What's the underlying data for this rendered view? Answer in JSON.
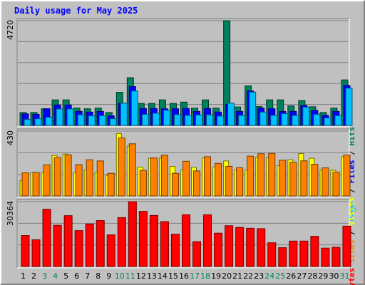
{
  "title": "Daily usage for May 2025",
  "chart_data": {
    "type": "bar",
    "title": "Daily usage for May 2025",
    "categories": [
      "1",
      "2",
      "3",
      "4",
      "5",
      "6",
      "7",
      "8",
      "9",
      "10",
      "11",
      "12",
      "13",
      "14",
      "15",
      "16",
      "17",
      "18",
      "19",
      "20",
      "21",
      "22",
      "23",
      "24",
      "25",
      "26",
      "27",
      "28",
      "29",
      "30",
      "31"
    ],
    "weekend_days": [
      "3",
      "4",
      "10",
      "11",
      "17",
      "18",
      "24",
      "25",
      "31"
    ],
    "panels": [
      {
        "name": "hits-panel",
        "ymax": 4720,
        "ymax_label": "4720",
        "labels": [
          "Hits",
          "Files",
          "Pages"
        ],
        "series": [
          {
            "name": "Hits",
            "color": "#00805c",
            "values": [
              580,
              580,
              750,
              1150,
              1150,
              780,
              750,
              780,
              580,
              1490,
              2150,
              990,
              990,
              1150,
              990,
              1050,
              780,
              1150,
              780,
              4720,
              830,
              1780,
              850,
              1150,
              1150,
              880,
              1120,
              840,
              580,
              780,
              2050
            ]
          },
          {
            "name": "Files",
            "color": "#0000ff",
            "values": [
              520,
              500,
              750,
              920,
              920,
              630,
              600,
              630,
              430,
              1000,
              1750,
              760,
              760,
              750,
              750,
              760,
              630,
              760,
              600,
              950,
              630,
              1550,
              780,
              750,
              630,
              630,
              900,
              680,
              450,
              630,
              1800
            ]
          },
          {
            "name": "Pages",
            "color": "#00c0ff",
            "values": [
              270,
              300,
              370,
              740,
              740,
              480,
              430,
              440,
              300,
              1000,
              1550,
              500,
              550,
              680,
              490,
              450,
              470,
              480,
              420,
              1000,
              450,
              1500,
              600,
              450,
              530,
              450,
              820,
              500,
              340,
              440,
              1680
            ]
          }
        ]
      },
      {
        "name": "visits-panel",
        "ymax": 430,
        "ymax_label": "430",
        "labels": [
          "Visits",
          "Sites"
        ],
        "series": [
          {
            "name": "Visits",
            "color": "#ffff00",
            "values": [
              101,
              155,
              155,
              268,
              278,
              155,
              172,
              159,
              136,
              414,
              331,
              191,
              250,
              251,
              196,
              172,
              190,
              251,
              193,
              232,
              172,
              172,
              257,
              252,
              201,
              240,
              281,
              250,
              172,
              170,
              260
            ]
          },
          {
            "name": "Sites",
            "color": "#ff8000",
            "values": [
              153,
              155,
              206,
              254,
              272,
              208,
              240,
              232,
              150,
              385,
              346,
              170,
              252,
              270,
              150,
              230,
              166,
              260,
              216,
              196,
              187,
              264,
              280,
              282,
              237,
              223,
              233,
              210,
              186,
              158,
              271
            ]
          }
        ]
      },
      {
        "name": "kbytes-panel",
        "ymax": 30364,
        "ymax_label": "30364",
        "labels": [
          "KBytes"
        ],
        "series": [
          {
            "name": "KBytes",
            "color": "#ff0000",
            "values": [
              14500,
              12500,
              26800,
              19300,
              23800,
              16800,
              19900,
              21500,
              14800,
              22900,
              30364,
              25800,
              23900,
              21000,
              15100,
              24200,
              11600,
              24200,
              15600,
              19100,
              18300,
              17900,
              17700,
              11100,
              8800,
              11900,
              11900,
              14100,
              8600,
              9000,
              18900
            ]
          }
        ]
      }
    ],
    "colors": {
      "background": "#c0c0c0",
      "title": "#0000ff",
      "grid": "#808080"
    }
  }
}
